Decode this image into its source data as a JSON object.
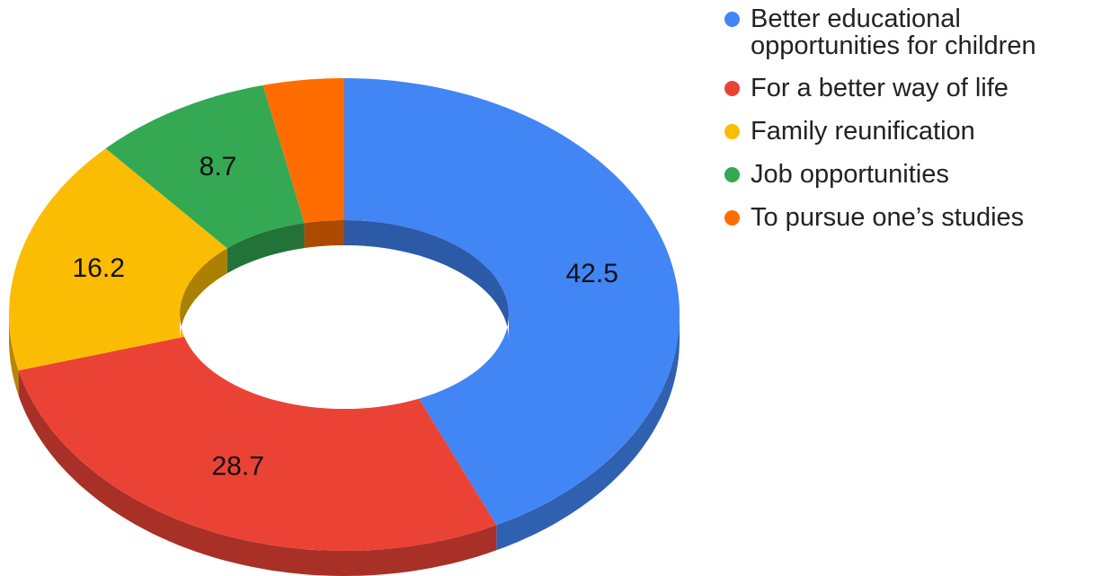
{
  "chart_data": {
    "type": "pie",
    "style": "3d-donut",
    "title": "",
    "legend_position": "top-right",
    "categories": [
      "Better educational opportunities for children",
      "For a better way of life",
      "Family reunification",
      "Job opportunities",
      "To pursue one’s studies"
    ],
    "values": [
      42.5,
      28.7,
      16.2,
      8.7,
      3.9
    ],
    "data_labels": [
      "42.5",
      "28.7",
      "16.2",
      "8.7",
      ""
    ],
    "colors": [
      "#4285F4",
      "#EA4335",
      "#FBBC04",
      "#34A853",
      "#FF6D01"
    ]
  }
}
